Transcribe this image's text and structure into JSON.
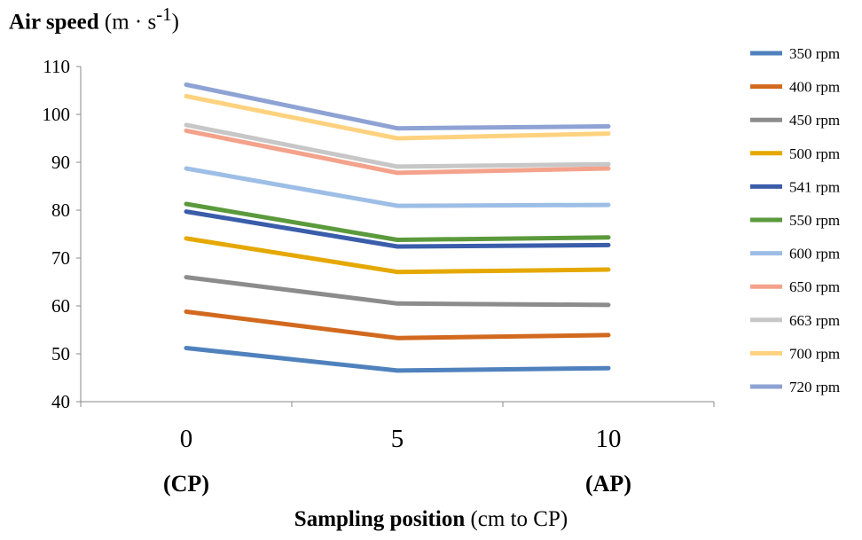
{
  "chart_data": {
    "type": "line",
    "title": "",
    "ylabel": {
      "bold": "Air speed",
      "rest": " (m · s",
      "sup": "-1",
      "close": ")"
    },
    "xlabel": {
      "bold": "Sampling position",
      "rest": " (cm to CP)"
    },
    "x": [
      0,
      5,
      10
    ],
    "x_tick_labels": [
      "0",
      "5",
      "10"
    ],
    "x_sub_labels": [
      "(CP)",
      "",
      "(AP)"
    ],
    "ylim": [
      40,
      110
    ],
    "yticks": [
      40,
      50,
      60,
      70,
      80,
      90,
      100,
      110
    ],
    "grid": false,
    "legend_position": "right",
    "series": [
      {
        "name": "350 rpm",
        "color": "#4F81BD",
        "values": [
          51.2,
          46.5,
          47.0
        ]
      },
      {
        "name": "400 rpm",
        "color": "#D2691E",
        "values": [
          58.8,
          53.3,
          53.9
        ]
      },
      {
        "name": "450 rpm",
        "color": "#8C8C8C",
        "values": [
          66.0,
          60.5,
          60.2
        ]
      },
      {
        "name": "500 rpm",
        "color": "#E5A800",
        "values": [
          74.1,
          67.1,
          67.6
        ]
      },
      {
        "name": "541 rpm",
        "color": "#3A5DAA",
        "values": [
          79.7,
          72.4,
          72.7
        ]
      },
      {
        "name": "550 rpm",
        "color": "#5B9A3C",
        "values": [
          81.3,
          73.8,
          74.3
        ]
      },
      {
        "name": "600 rpm",
        "color": "#9DBEE6",
        "values": [
          88.7,
          80.9,
          81.1
        ]
      },
      {
        "name": "650 rpm",
        "color": "#F4A28B",
        "values": [
          96.6,
          87.8,
          88.7
        ]
      },
      {
        "name": "663 rpm",
        "color": "#C7C7C7",
        "values": [
          97.8,
          89.1,
          89.6
        ]
      },
      {
        "name": "700 rpm",
        "color": "#FFD27F",
        "values": [
          103.8,
          95.0,
          96.0
        ]
      },
      {
        "name": "720 rpm",
        "color": "#8EA3D4",
        "values": [
          106.2,
          97.1,
          97.5
        ]
      }
    ]
  }
}
